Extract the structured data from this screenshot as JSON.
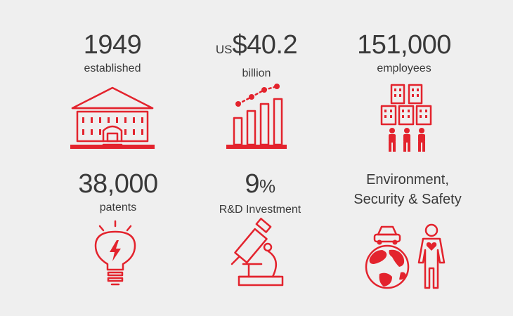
{
  "stats": [
    {
      "value": "1949",
      "label": "established",
      "icon": "building-icon"
    },
    {
      "prefix": "US",
      "value": "$40.2",
      "label": "billion",
      "icon": "growth-chart-icon"
    },
    {
      "value": "151,000",
      "label": "employees",
      "icon": "employees-icon"
    },
    {
      "value": "38,000",
      "label": "patents",
      "icon": "lightbulb-icon"
    },
    {
      "value": "9",
      "suffix": "%",
      "label": "R&D Investment",
      "icon": "microscope-icon"
    },
    {
      "line1": "Environment,",
      "line2": "Security & Safety",
      "icon": "globe-person-icon"
    }
  ],
  "colors": {
    "accent": "#e3232d",
    "text": "#3a3a3a",
    "background": "#efefef"
  }
}
